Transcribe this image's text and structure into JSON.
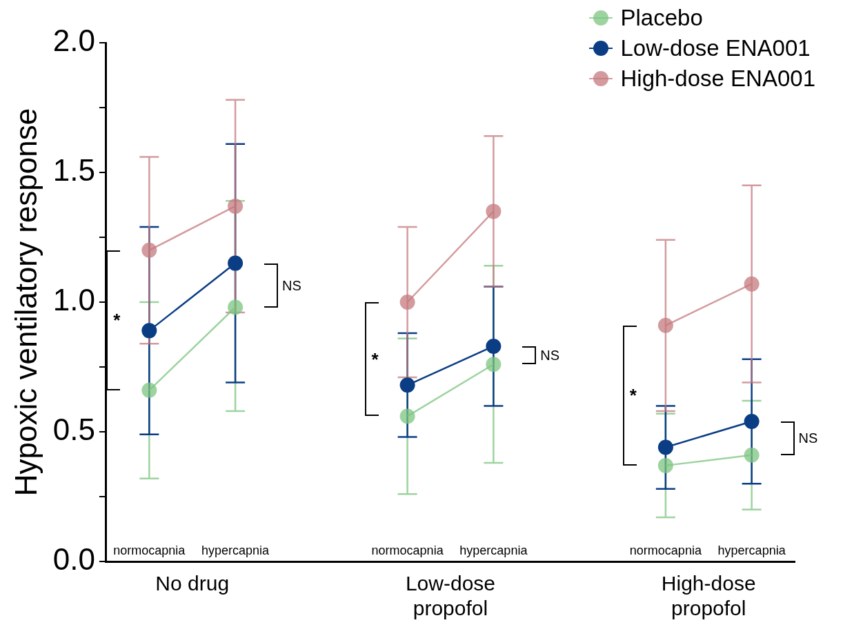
{
  "chart_data": {
    "type": "line",
    "ylabel": "Hypoxic ventilatory response",
    "categories": [
      "normocapnia",
      "hypercapnia",
      null,
      "normocapnia",
      "hypercapnia",
      null,
      "normocapnia",
      "hypercapnia"
    ],
    "series": [
      {
        "name": "Placebo",
        "color": "#7cc47f",
        "values": [
          0.66,
          0.98,
          null,
          0.56,
          0.76,
          null,
          0.37,
          0.41
        ],
        "errors": [
          [
            0.32,
            1.0
          ],
          [
            0.58,
            1.39
          ],
          null,
          [
            0.26,
            0.86
          ],
          [
            0.38,
            1.14
          ],
          null,
          [
            0.17,
            0.57
          ],
          [
            0.2,
            0.62
          ]
        ]
      },
      {
        "name": "Low-dose ENA001",
        "color": "#0a3d84",
        "values": [
          0.89,
          1.15,
          null,
          0.68,
          0.83,
          null,
          0.44,
          0.54
        ],
        "errors": [
          [
            0.49,
            1.29
          ],
          [
            0.69,
            1.61
          ],
          null,
          [
            0.48,
            0.88
          ],
          [
            0.6,
            1.06
          ],
          null,
          [
            0.28,
            0.6
          ],
          [
            0.3,
            0.78
          ]
        ]
      },
      {
        "name": "High-dose ENA001",
        "color": "#c47a7e",
        "values": [
          1.2,
          1.37,
          null,
          1.0,
          1.35,
          null,
          0.91,
          1.07
        ],
        "errors": [
          [
            0.84,
            1.56
          ],
          [
            0.96,
            1.78
          ],
          null,
          [
            0.71,
            1.29
          ],
          [
            1.06,
            1.64
          ],
          null,
          [
            0.58,
            1.24
          ],
          [
            0.69,
            1.45
          ]
        ]
      }
    ],
    "ylim": [
      0,
      2
    ],
    "yticks": [
      {
        "value": 0,
        "label": "0.0"
      },
      {
        "value": 0.25,
        "label": null
      },
      {
        "value": 0.5,
        "label": "0.5"
      },
      {
        "value": 0.75,
        "label": null
      },
      {
        "value": 1,
        "label": "1.0"
      },
      {
        "value": 1.25,
        "label": null
      },
      {
        "value": 1.5,
        "label": "1.5"
      },
      {
        "value": 1.75,
        "label": null
      },
      {
        "value": 2,
        "label": "2.0"
      }
    ],
    "grid": false,
    "legend": "top right",
    "marker": "circle",
    "annotations": [
      "No drug",
      "Low-dose propofol",
      "High-dose propofol",
      "*",
      "NS",
      "*",
      "NS",
      "*",
      "NS"
    ]
  }
}
